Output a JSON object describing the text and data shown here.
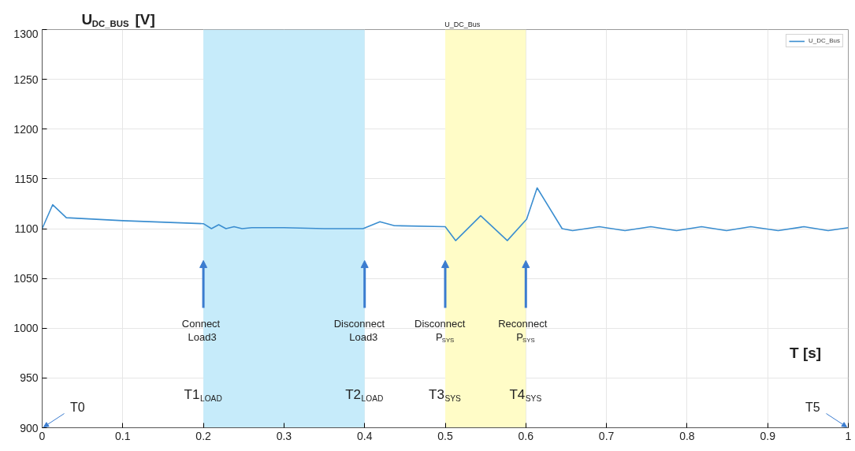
{
  "chart_data": {
    "type": "line",
    "title": "U_DC_Bus",
    "xlabel": "T [s]",
    "ylabel": "U$_{DC_BUS}$ [V]",
    "series": [
      {
        "name": "U_DC_Bus",
        "color": "#3b8ed0",
        "x": [
          0,
          0.013,
          0.03,
          0.1,
          0.2,
          0.21,
          0.219,
          0.228,
          0.238,
          0.248,
          0.26,
          0.3,
          0.35,
          0.398,
          0.419,
          0.437,
          0.5,
          0.513,
          0.544,
          0.577,
          0.601,
          0.614,
          0.645,
          0.658,
          0.691,
          0.723,
          0.755,
          0.787,
          0.818,
          0.849,
          0.879,
          0.913,
          0.945,
          0.975,
          1.0
        ],
        "values": [
          1100,
          1124,
          1111,
          1108,
          1105,
          1100,
          1104,
          1100,
          1102,
          1100,
          1101,
          1101,
          1100,
          1100,
          1107,
          1103,
          1102,
          1088,
          1113,
          1088,
          1109.5,
          1141,
          1100,
          1098,
          1102,
          1098,
          1102,
          1098,
          1102,
          1098,
          1102,
          1098,
          1102,
          1098,
          1101
        ]
      }
    ],
    "xlim": [
      0,
      1
    ],
    "ylim": [
      900,
      1300
    ],
    "xticks": [
      0,
      0.1,
      0.2,
      0.3,
      0.4,
      0.5,
      0.6,
      0.7,
      0.8,
      0.9,
      1
    ],
    "yticks": [
      900,
      950,
      1000,
      1050,
      1100,
      1150,
      1200,
      1250,
      1300
    ],
    "bands": [
      {
        "axis": "x",
        "from": 0.2,
        "to": 0.4,
        "color": "#c6ebfa"
      },
      {
        "axis": "x",
        "from": 0.5,
        "to": 0.6,
        "color": "#fffcc7"
      }
    ],
    "annotations": [
      {
        "text": "Connect\nLoad3",
        "x": 0.2,
        "y": 1068
      },
      {
        "text": "Disconnect\nLoad3",
        "x": 0.4,
        "y": 1068
      },
      {
        "text": "Disconnect\nP$_{SYS}$",
        "x": 0.5,
        "y": 1068
      },
      {
        "text": "Reconnect\nP$_{SYS}$",
        "x": 0.6,
        "y": 1068
      },
      {
        "text": "T1$_{LOAD}$",
        "x": 0.2,
        "y": 938
      },
      {
        "text": "T2$_{LOAD}$",
        "x": 0.4,
        "y": 938
      },
      {
        "text": "T3$_{SYS}$",
        "x": 0.5,
        "y": 938
      },
      {
        "text": "T4$_{SYS}$",
        "x": 0.6,
        "y": 938
      },
      "T0",
      "T5"
    ],
    "grid": true,
    "legend": "top right"
  }
}
